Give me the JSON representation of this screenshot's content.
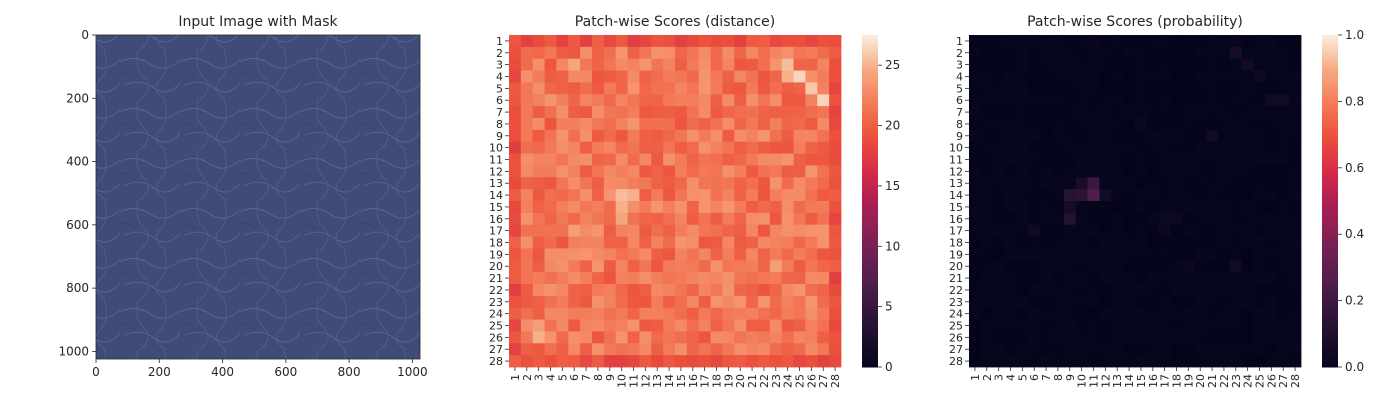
{
  "panels": [
    {
      "title": "Input Image with Mask",
      "type": "image",
      "x_ticks": [
        "0",
        "200",
        "400",
        "600",
        "800",
        "1000"
      ],
      "y_ticks": [
        "0",
        "200",
        "400",
        "600",
        "800",
        "1000"
      ],
      "xlim": [
        0,
        1024
      ],
      "ylim": [
        0,
        1024
      ],
      "image_color": "#3f4c78"
    },
    {
      "title": "Patch-wise Scores (distance)",
      "type": "heatmap",
      "colorbar_ticks": [
        "0",
        "5",
        "10",
        "15",
        "20",
        "25"
      ]
    },
    {
      "title": "Patch-wise Scores (probability)",
      "type": "heatmap",
      "colorbar_ticks": [
        "0.0",
        "0.2",
        "0.4",
        "0.6",
        "0.8",
        "1.0"
      ]
    }
  ],
  "chart_data": [
    {
      "type": "image",
      "title": "Input Image with Mask",
      "xlim": [
        0,
        1024
      ],
      "ylim": [
        1024,
        0
      ]
    },
    {
      "type": "heatmap",
      "title": "Patch-wise Scores (distance)",
      "rows": 28,
      "cols": 28,
      "row_labels": [
        "1",
        "2",
        "3",
        "4",
        "5",
        "6",
        "7",
        "8",
        "9",
        "10",
        "11",
        "12",
        "13",
        "14",
        "15",
        "16",
        "17",
        "18",
        "19",
        "20",
        "21",
        "22",
        "23",
        "24",
        "25",
        "26",
        "27",
        "28"
      ],
      "col_labels": [
        "1",
        "2",
        "3",
        "4",
        "5",
        "6",
        "7",
        "8",
        "9",
        "10",
        "11",
        "12",
        "13",
        "14",
        "15",
        "16",
        "17",
        "18",
        "19",
        "20",
        "21",
        "22",
        "23",
        "24",
        "25",
        "26",
        "27",
        "28"
      ],
      "vmin": 0,
      "vmax": 27.5,
      "colormap": "rocket",
      "colorbar_ticks": [
        0,
        5,
        10,
        15,
        20,
        25
      ],
      "base_value": 21.5,
      "edge_value": 19.0,
      "hotspots": [
        {
          "row": 4,
          "col": 25,
          "value": 26.5
        },
        {
          "row": 5,
          "col": 26,
          "value": 26.0
        },
        {
          "row": 6,
          "col": 27,
          "value": 26.5
        },
        {
          "row": 3,
          "col": 24,
          "value": 25.5
        },
        {
          "row": 4,
          "col": 24,
          "value": 25.0
        },
        {
          "row": 14,
          "col": 10,
          "value": 25.5
        },
        {
          "row": 14,
          "col": 11,
          "value": 25.0
        },
        {
          "row": 15,
          "col": 10,
          "value": 25.0
        },
        {
          "row": 16,
          "col": 10,
          "value": 24.5
        },
        {
          "row": 26,
          "col": 3,
          "value": 25.0
        },
        {
          "row": 25,
          "col": 3,
          "value": 24.0
        },
        {
          "row": 3,
          "col": 6,
          "value": 24.5
        },
        {
          "row": 17,
          "col": 6,
          "value": 24.0
        },
        {
          "row": 20,
          "col": 23,
          "value": 24.0
        },
        {
          "row": 9,
          "col": 22,
          "value": 23.5
        }
      ]
    },
    {
      "type": "heatmap",
      "title": "Patch-wise Scores (probability)",
      "rows": 28,
      "cols": 28,
      "row_labels": [
        "1",
        "2",
        "3",
        "4",
        "5",
        "6",
        "7",
        "8",
        "9",
        "10",
        "11",
        "12",
        "13",
        "14",
        "15",
        "16",
        "17",
        "18",
        "19",
        "20",
        "21",
        "22",
        "23",
        "24",
        "25",
        "26",
        "27",
        "28"
      ],
      "col_labels": [
        "1",
        "2",
        "3",
        "4",
        "5",
        "6",
        "7",
        "8",
        "9",
        "10",
        "11",
        "12",
        "13",
        "14",
        "15",
        "16",
        "17",
        "18",
        "19",
        "20",
        "21",
        "22",
        "23",
        "24",
        "25",
        "26",
        "27",
        "28"
      ],
      "vmin": 0,
      "vmax": 1,
      "colormap": "rocket",
      "colorbar_ticks": [
        0.0,
        0.2,
        0.4,
        0.6,
        0.8,
        1.0
      ],
      "base_value": 0.0,
      "hotspots": [
        {
          "row": 13,
          "col": 11,
          "value": 0.2
        },
        {
          "row": 14,
          "col": 11,
          "value": 0.26
        },
        {
          "row": 14,
          "col": 9,
          "value": 0.14
        },
        {
          "row": 14,
          "col": 10,
          "value": 0.15
        },
        {
          "row": 16,
          "col": 9,
          "value": 0.12
        },
        {
          "row": 15,
          "col": 9,
          "value": 0.07
        },
        {
          "row": 13,
          "col": 10,
          "value": 0.08
        },
        {
          "row": 14,
          "col": 12,
          "value": 0.06
        },
        {
          "row": 2,
          "col": 23,
          "value": 0.07
        },
        {
          "row": 3,
          "col": 24,
          "value": 0.06
        },
        {
          "row": 6,
          "col": 26,
          "value": 0.05
        },
        {
          "row": 6,
          "col": 27,
          "value": 0.05
        },
        {
          "row": 4,
          "col": 25,
          "value": 0.04
        },
        {
          "row": 20,
          "col": 23,
          "value": 0.05
        },
        {
          "row": 9,
          "col": 21,
          "value": 0.05
        },
        {
          "row": 17,
          "col": 6,
          "value": 0.05
        },
        {
          "row": 16,
          "col": 17,
          "value": 0.04
        },
        {
          "row": 16,
          "col": 18,
          "value": 0.03
        },
        {
          "row": 17,
          "col": 17,
          "value": 0.03
        },
        {
          "row": 20,
          "col": 19,
          "value": 0.03
        },
        {
          "row": 8,
          "col": 15,
          "value": 0.03
        },
        {
          "row": 22,
          "col": 18,
          "value": 0.02
        }
      ]
    }
  ]
}
